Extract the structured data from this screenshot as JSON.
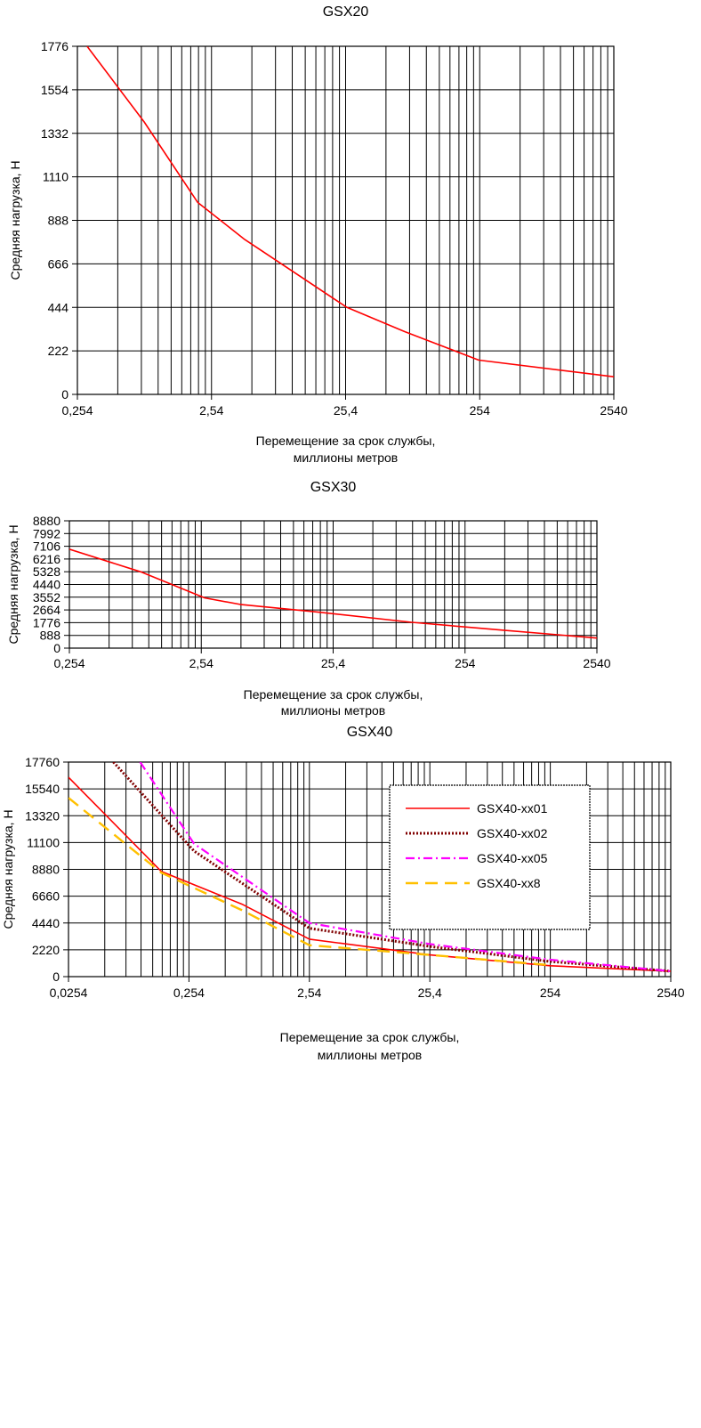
{
  "chart_data": [
    {
      "type": "line",
      "title": "GSX20",
      "xlabel": [
        "Перемещение за срок службы,",
        "миллионы метров"
      ],
      "ylabel": "Средняя нагрузка, Н",
      "x_scale": "log",
      "xlim": [
        0.254,
        2540
      ],
      "ylim": [
        0,
        1776
      ],
      "x_tick_labels": [
        "0,254",
        "2,54",
        "25,4",
        "254",
        "2540"
      ],
      "y_tick_labels": [
        "0",
        "222",
        "444",
        "666",
        "888",
        "1110",
        "1332",
        "1554",
        "1776"
      ],
      "grid": true,
      "series": [
        {
          "color": "#ff0000",
          "dash": "solid",
          "points": [
            [
              0.3,
              1776
            ],
            [
              0.8,
              1390
            ],
            [
              2.0,
              980
            ],
            [
              4.5,
              790
            ],
            [
              26.0,
              444
            ],
            [
              70.0,
              320
            ],
            [
              250.0,
              175
            ],
            [
              2540.0,
              90
            ]
          ]
        }
      ]
    },
    {
      "type": "line",
      "title": "GSX30",
      "xlabel": [
        "Перемещение за срок службы,",
        "миллионы метров"
      ],
      "ylabel": "Средняя нагрузка, Н",
      "x_scale": "log",
      "xlim": [
        0.254,
        2540
      ],
      "ylim": [
        0,
        8880
      ],
      "x_tick_labels": [
        "0,254",
        "2,54",
        "25,4",
        "254",
        "2540"
      ],
      "y_tick_labels": [
        "0",
        "888",
        "1776",
        "2664",
        "3552",
        "4440",
        "5328",
        "6216",
        "7106",
        "7992",
        "8880"
      ],
      "grid": true,
      "series": [
        {
          "color": "#ff0000",
          "dash": "solid",
          "points": [
            [
              0.254,
              6900
            ],
            [
              0.9,
              5300
            ],
            [
              2.7,
              3500
            ],
            [
              5.0,
              3050
            ],
            [
              20.0,
              2500
            ],
            [
              100.0,
              1800
            ],
            [
              500.0,
              1250
            ],
            [
              2540.0,
              700
            ]
          ]
        }
      ]
    },
    {
      "type": "line",
      "title": "GSX40",
      "xlabel": [
        "Перемещение за срок службы,",
        "миллионы метров"
      ],
      "ylabel": "Средняя нагрузка, Н",
      "x_scale": "log",
      "xlim": [
        0.0254,
        2540
      ],
      "ylim": [
        0,
        17760
      ],
      "x_tick_labels": [
        "0,0254",
        "0,254",
        "2,54",
        "25,4",
        "254",
        "2540"
      ],
      "y_tick_labels": [
        "0",
        "2220",
        "4440",
        "6660",
        "8880",
        "11100",
        "13320",
        "15540",
        "17760"
      ],
      "grid": true,
      "legend_position": "top-right",
      "series": [
        {
          "name": "GSX40-xx01",
          "color": "#ff0000",
          "dash": "solid",
          "points": [
            [
              0.0254,
              16500
            ],
            [
              0.15,
              8700
            ],
            [
              0.7,
              6000
            ],
            [
              2.54,
              3100
            ],
            [
              25.4,
              1800
            ],
            [
              254.0,
              900
            ],
            [
              2540.0,
              450
            ]
          ]
        },
        {
          "name": "GSX40-xx02",
          "color": "#800000",
          "dash": "dotted",
          "points": [
            [
              0.06,
              17760
            ],
            [
              0.28,
              10400
            ],
            [
              2.54,
              4000
            ],
            [
              25.4,
              2500
            ],
            [
              254.0,
              1250
            ],
            [
              2540.0,
              450
            ]
          ]
        },
        {
          "name": "GSX40-xx05",
          "color": "#ff00ff",
          "dash": "dashdot",
          "points": [
            [
              0.1,
              17760
            ],
            [
              0.28,
              11000
            ],
            [
              2.54,
              4440
            ],
            [
              25.4,
              2700
            ],
            [
              254.0,
              1400
            ],
            [
              2540.0,
              450
            ]
          ]
        },
        {
          "name": "GSX40-xx8",
          "color": "#ffc000",
          "dash": "dashed",
          "points": [
            [
              0.0254,
              14800
            ],
            [
              0.15,
              8600
            ],
            [
              0.7,
              5500
            ],
            [
              2.54,
              2600
            ],
            [
              25.4,
              1800
            ],
            [
              254.0,
              950
            ]
          ]
        }
      ]
    }
  ]
}
